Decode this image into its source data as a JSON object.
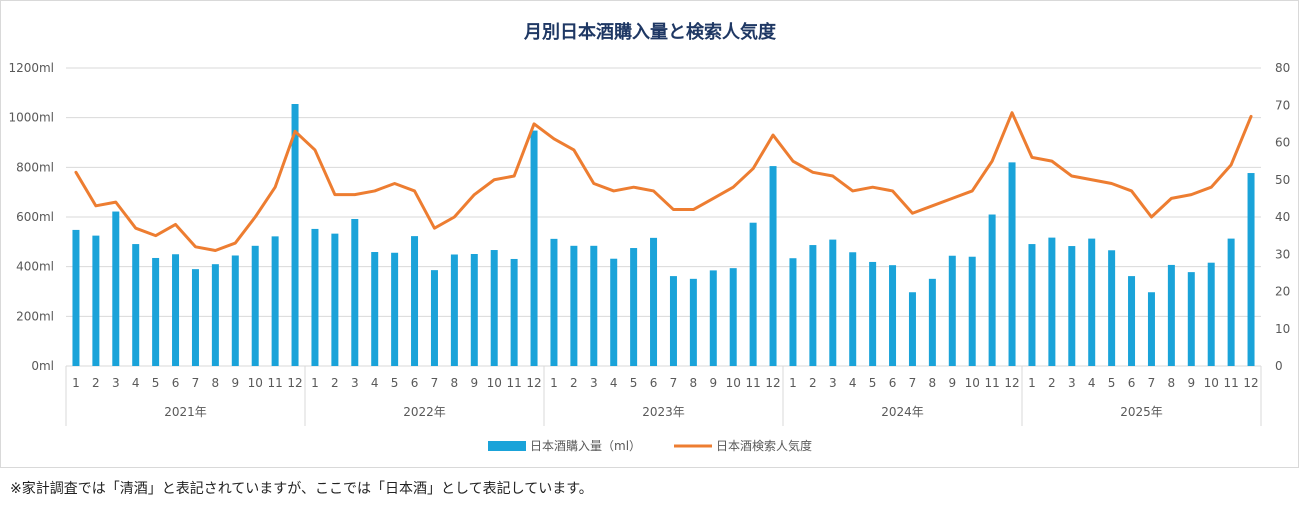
{
  "chart_data": {
    "type": "bar",
    "title": "月別日本酒購入量と検索人気度",
    "years": [
      "2021年",
      "2022年",
      "2023年",
      "2024年",
      "2025年"
    ],
    "months": [
      "1",
      "2",
      "3",
      "4",
      "5",
      "6",
      "7",
      "8",
      "9",
      "10",
      "11",
      "12"
    ],
    "y_left": {
      "ticks": [
        "0ml",
        "200ml",
        "400ml",
        "600ml",
        "800ml",
        "1000ml",
        "1200ml"
      ],
      "min": 0,
      "max": 1200
    },
    "y_right": {
      "ticks": [
        "0",
        "10",
        "20",
        "30",
        "40",
        "50",
        "60",
        "70",
        "80"
      ],
      "min": 0,
      "max": 80
    },
    "grid": true,
    "legend_position": "bottom",
    "series": [
      {
        "name": "日本酒購入量（ml）",
        "type": "bar",
        "axis": "left",
        "color": "#1aa3d9",
        "values": [
          548,
          525,
          622,
          491,
          435,
          450,
          390,
          410,
          445,
          484,
          522,
          1055,
          552,
          533,
          592,
          459,
          456,
          523,
          386,
          449,
          451,
          467,
          431,
          948,
          512,
          484,
          484,
          432,
          475,
          516,
          362,
          351,
          385,
          394,
          577,
          805,
          434,
          487,
          509,
          458,
          419,
          406,
          297,
          351,
          444,
          440,
          610,
          820,
          491,
          517,
          483,
          513,
          466,
          362,
          297,
          407,
          378,
          416,
          513,
          777
        ]
      },
      {
        "name": "日本酒検索人気度",
        "type": "line",
        "axis": "right",
        "color": "#ed7d31",
        "values": [
          52,
          43,
          44,
          37,
          35,
          38,
          32,
          31,
          33,
          40,
          48,
          63,
          58,
          46,
          46,
          47,
          49,
          47,
          37,
          40,
          46,
          50,
          51,
          65,
          61,
          58,
          49,
          47,
          48,
          47,
          42,
          42,
          45,
          48,
          53,
          62,
          55,
          52,
          51,
          47,
          48,
          47,
          41,
          43,
          45,
          47,
          55,
          68,
          56,
          55,
          51,
          50,
          49,
          47,
          40,
          45,
          46,
          48,
          54,
          67
        ]
      }
    ]
  },
  "footnote": "※家計調査では「清酒」と表記されていますが、ここでは「日本酒」として表記しています。"
}
